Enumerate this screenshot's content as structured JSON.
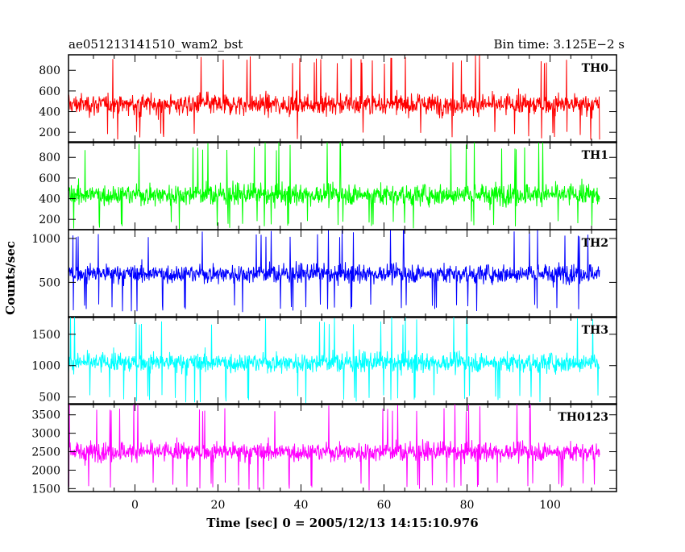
{
  "header": {
    "left_title": "ae051213141510_wam2_bst",
    "right_title": "Bin time: 3.125E−2 s"
  },
  "chart_data": {
    "type": "line",
    "title": "ae051213141510_wam2_bst",
    "subtitle": "Bin time: 3.125E−2 s",
    "xlabel": "Time [sec] 0 = 2005/12/13 14:15:10.976",
    "ylabel": "Counts/sec",
    "xlim": [
      -16,
      116
    ],
    "x_ticks": [
      0,
      20,
      40,
      60,
      80,
      100
    ],
    "x_tick_labels": [
      "0",
      "20",
      "40",
      "60",
      "80",
      "100"
    ],
    "data_x_range": [
      -16,
      112
    ],
    "bin_time": 0.03125,
    "grid": false,
    "legend": "none",
    "series": [
      {
        "name": "TH0",
        "color": "#ff0000",
        "ylim": [
          100,
          950
        ],
        "yticks": [
          200,
          400,
          600,
          800
        ],
        "ytick_labels": [
          "200",
          "400",
          "600",
          "800"
        ],
        "mean": 470,
        "band_low": 180,
        "band_high": 880,
        "max": 950,
        "min": 120
      },
      {
        "name": "TH1",
        "color": "#00ff00",
        "ylim": [
          100,
          950
        ],
        "yticks": [
          200,
          400,
          600,
          800
        ],
        "ytick_labels": [
          "200",
          "400",
          "600",
          "800"
        ],
        "mean": 440,
        "band_low": 150,
        "band_high": 850,
        "max": 950,
        "min": 100
      },
      {
        "name": "TH2",
        "color": "#0000ff",
        "ylim": [
          100,
          1100
        ],
        "yticks": [
          500,
          1000
        ],
        "ytick_labels": [
          "500",
          "1000"
        ],
        "mean": 600,
        "band_low": 270,
        "band_high": 1000,
        "max": 1100,
        "min": 160
      },
      {
        "name": "TH3",
        "color": "#00ffff",
        "ylim": [
          380,
          1780
        ],
        "yticks": [
          500,
          1000,
          1500
        ],
        "ytick_labels": [
          "500",
          "1000",
          "1500"
        ],
        "mean": 1050,
        "band_low": 520,
        "band_high": 1600,
        "max": 1780,
        "min": 400
      },
      {
        "name": "TH0123",
        "color": "#ff00ff",
        "ylim": [
          1420,
          3800
        ],
        "yticks": [
          1500,
          2000,
          2500,
          3000,
          3500
        ],
        "ytick_labels": [
          "1500",
          "2000",
          "2500",
          "3000",
          "3500"
        ],
        "mean": 2500,
        "band_low": 1650,
        "band_high": 3400,
        "max": 3800,
        "min": 1450
      }
    ]
  }
}
